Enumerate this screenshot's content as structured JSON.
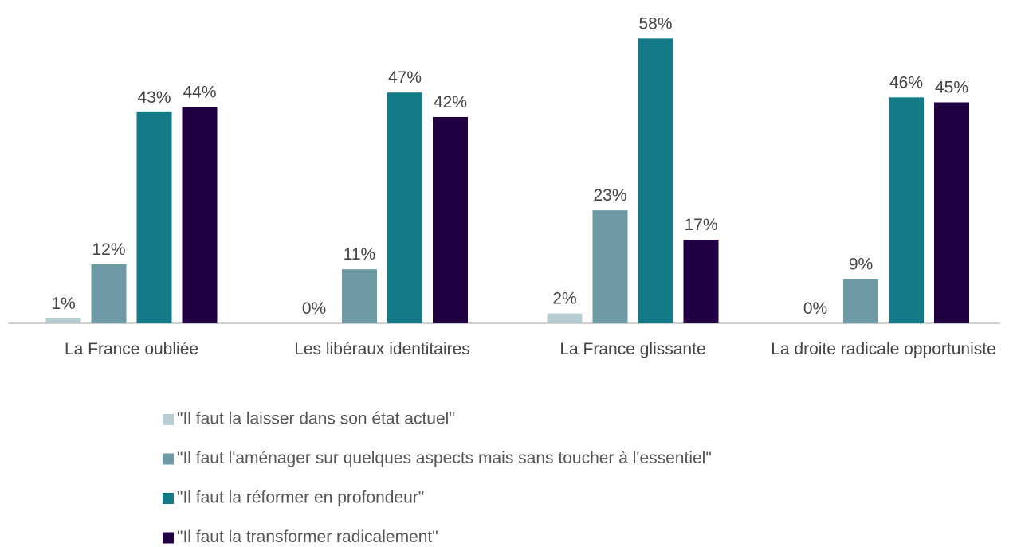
{
  "chart_data": {
    "type": "bar",
    "categories": [
      "La France oubliée",
      "Les libéraux identitaires",
      "La France glissante",
      "La droite radicale opportuniste"
    ],
    "ylim": [
      0,
      60
    ],
    "series": [
      {
        "name": "\"Il faut la laisser dans son état actuel\"",
        "color": "#b7cdd2",
        "values": [
          1,
          0,
          2,
          0
        ],
        "value_labels": [
          "1%",
          "0%",
          "2%",
          "0%"
        ]
      },
      {
        "name": "\"Il faut l'aménager sur quelques aspects mais sans toucher à l'essentiel\"",
        "color": "#6e9aa6",
        "values": [
          12,
          11,
          23,
          9
        ],
        "value_labels": [
          "12%",
          "11%",
          "23%",
          "9%"
        ]
      },
      {
        "name": "\"Il faut la réformer en profondeur\"",
        "color": "#137b87",
        "values": [
          43,
          47,
          58,
          46
        ],
        "value_labels": [
          "43%",
          "47%",
          "58%",
          "46%"
        ]
      },
      {
        "name": "\"Il faut la transformer radicalement\"",
        "color": "#200042",
        "values": [
          44,
          42,
          17,
          45
        ],
        "value_labels": [
          "44%",
          "42%",
          "17%",
          "45%"
        ]
      }
    ]
  }
}
